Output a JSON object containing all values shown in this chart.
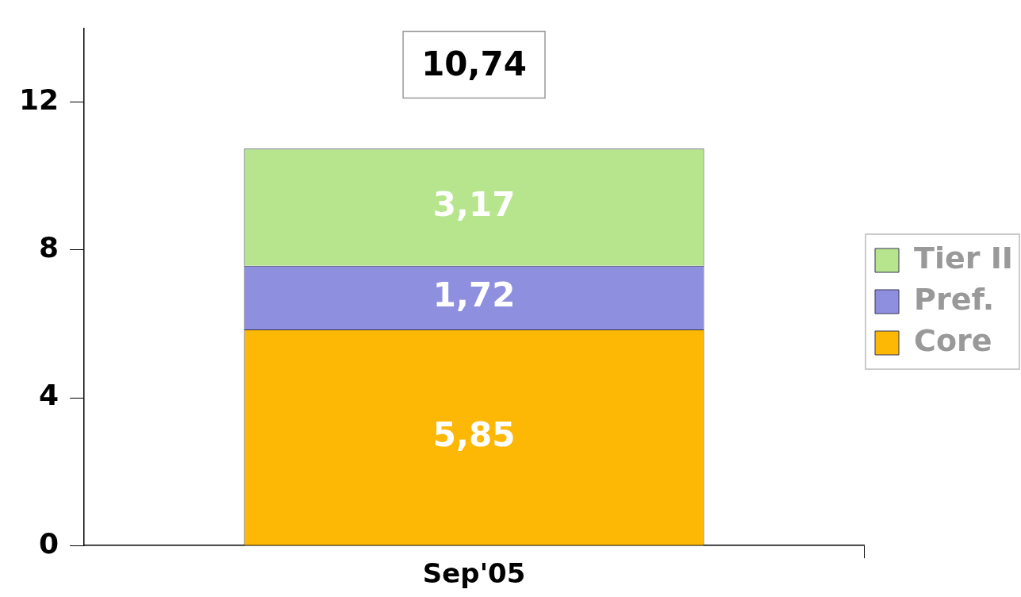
{
  "chart_data": {
    "type": "bar",
    "stacked": true,
    "categories": [
      "Sep'05"
    ],
    "series": [
      {
        "name": "Core",
        "color": "#fdb805",
        "values": [
          5.85
        ],
        "value_labels": [
          "5,85"
        ]
      },
      {
        "name": "Pref.",
        "color": "#8f8fe0",
        "values": [
          1.72
        ],
        "value_labels": [
          "1,72"
        ]
      },
      {
        "name": "Tier II",
        "color": "#b6e58e",
        "values": [
          3.17
        ],
        "value_labels": [
          "3,17"
        ]
      }
    ],
    "totals": [
      "10,74"
    ],
    "ylim": [
      0,
      14
    ],
    "yticks": [
      0,
      4,
      8,
      12
    ],
    "grid": false,
    "legend": "right"
  }
}
